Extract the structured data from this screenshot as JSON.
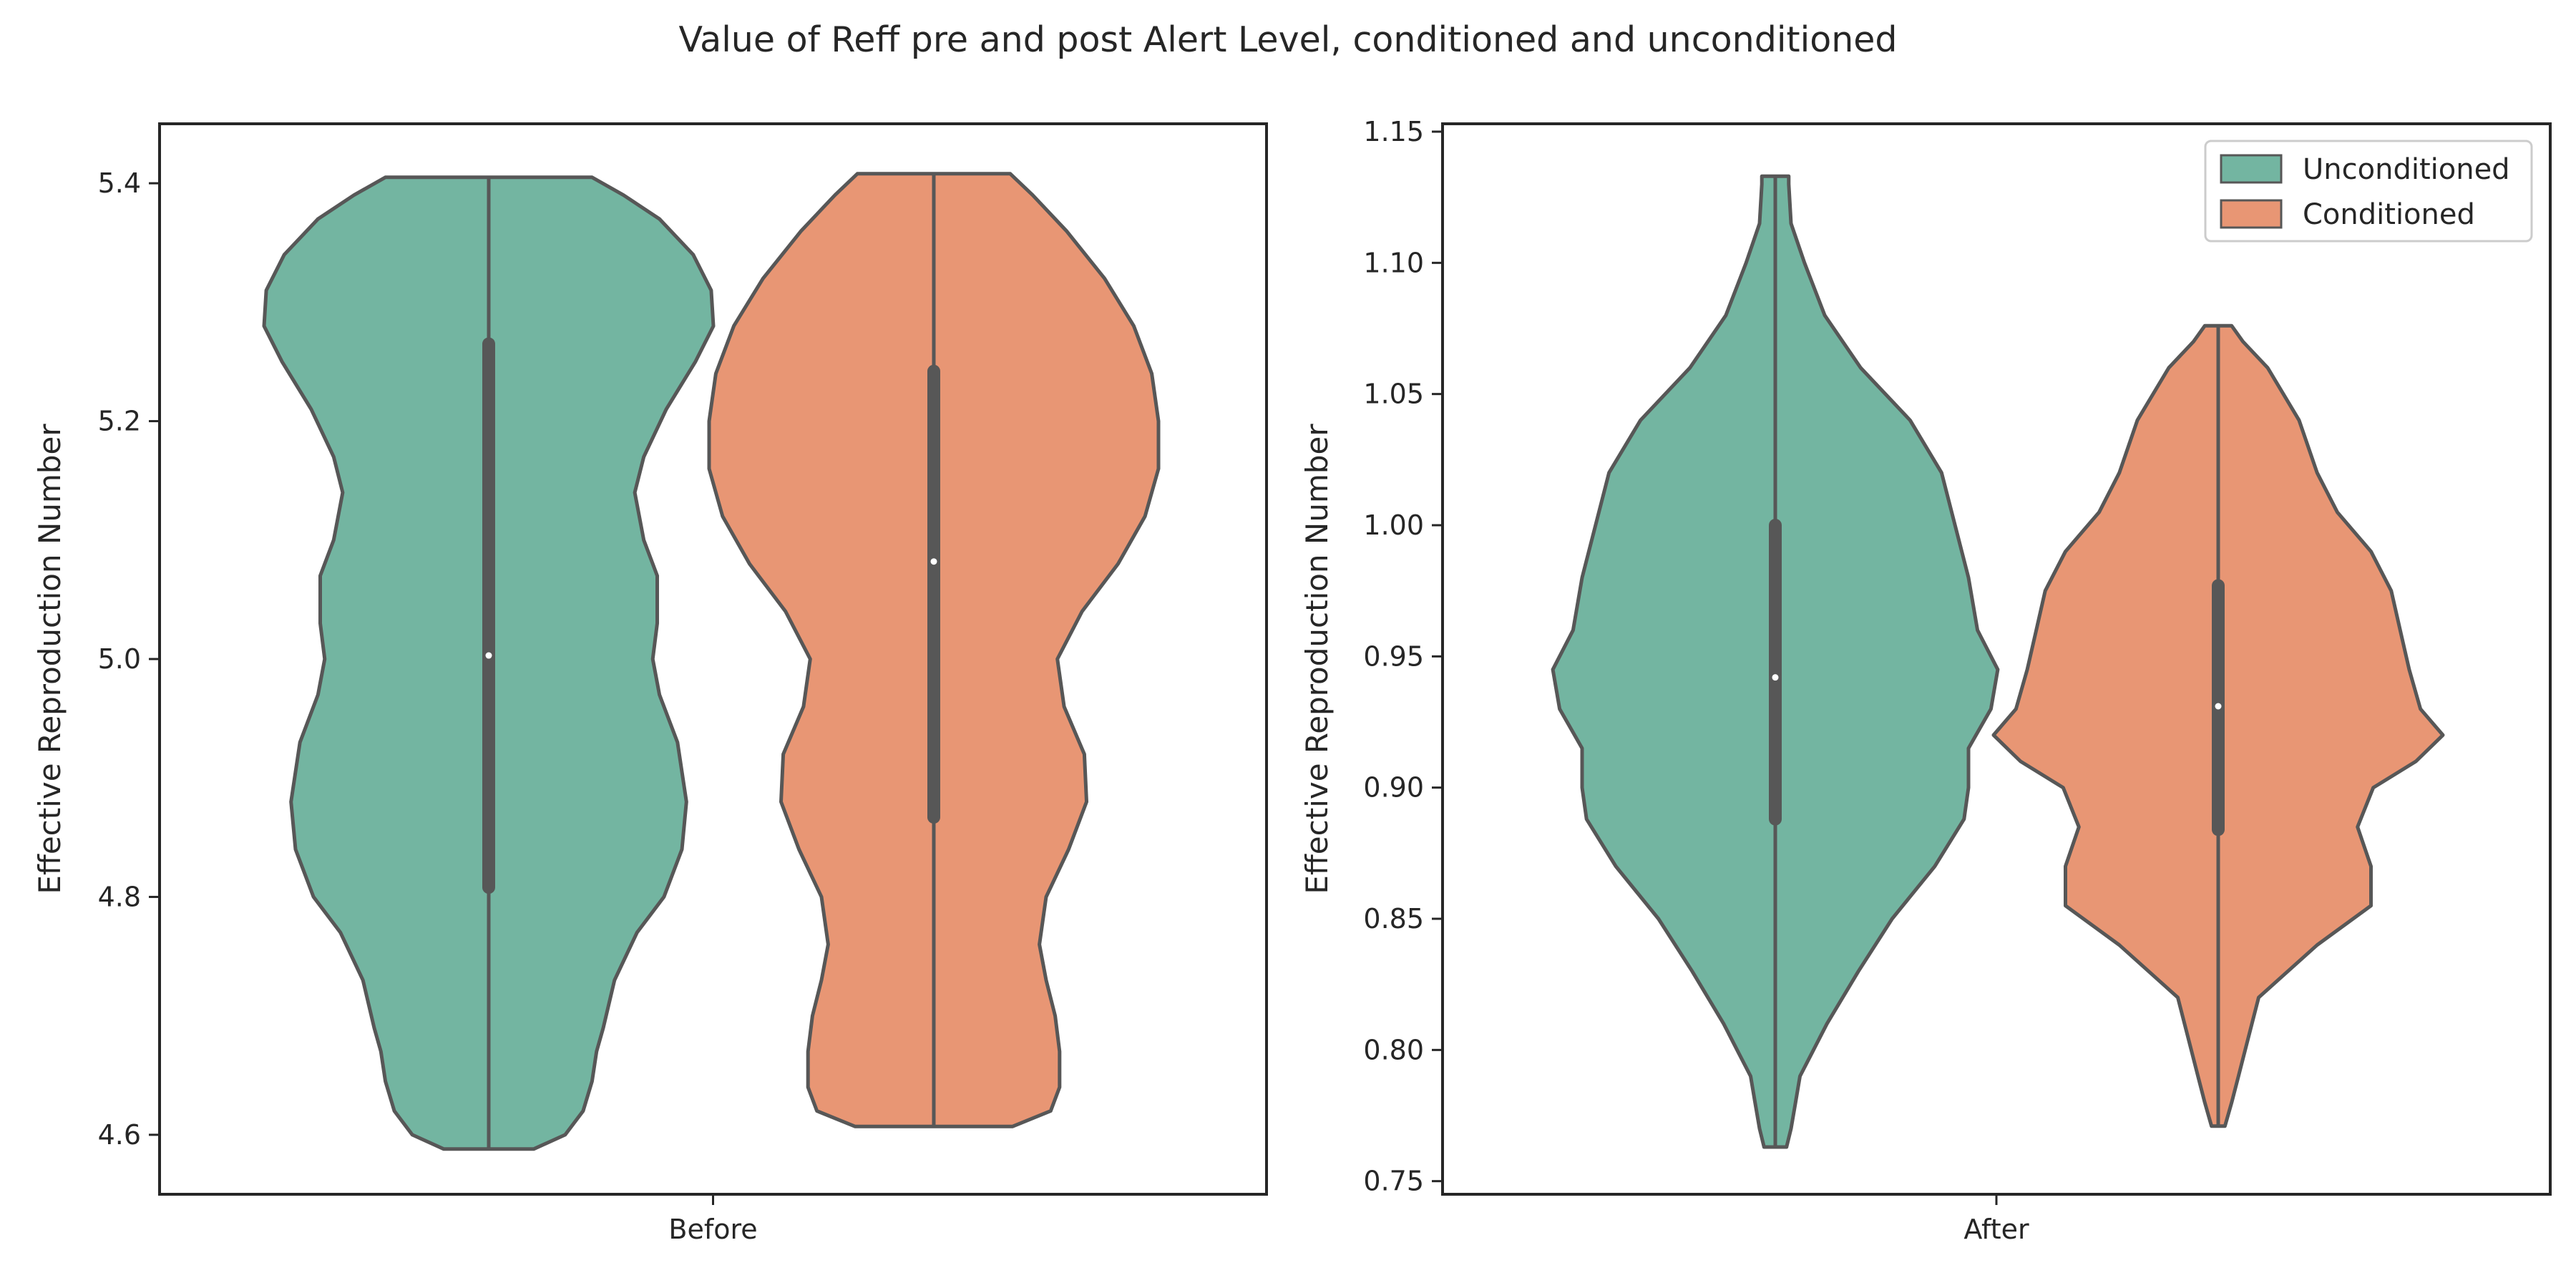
{
  "figure": {
    "title": "Value of Reff pre and post Alert Level, conditioned and unconditioned"
  },
  "colors": {
    "unconditioned": "#73b5a1",
    "conditioned": "#e89674",
    "outline": "#575757",
    "axes": "#262626",
    "background": "#ffffff"
  },
  "chart_data": [
    {
      "type": "violin",
      "panel": "left",
      "title": "",
      "xlabel": "",
      "ylabel": "Effective Reproduction Number",
      "categories": [
        "Before"
      ],
      "ylim": [
        4.55,
        5.45
      ],
      "yticks": [
        4.6,
        4.8,
        5.0,
        5.2,
        5.4
      ],
      "ytick_labels": [
        "4.6",
        "4.8",
        "5.0",
        "5.2",
        "5.4"
      ],
      "series": [
        {
          "name": "Unconditioned",
          "range": [
            4.588,
            5.405
          ],
          "median": 5.003,
          "q1": 4.808,
          "q3": 5.265,
          "density_profile": [
            [
              4.588,
              0.2
            ],
            [
              4.6,
              0.34
            ],
            [
              4.62,
              0.42
            ],
            [
              4.645,
              0.46
            ],
            [
              4.67,
              0.48
            ],
            [
              4.69,
              0.51
            ],
            [
              4.73,
              0.56
            ],
            [
              4.77,
              0.66
            ],
            [
              4.8,
              0.78
            ],
            [
              4.84,
              0.86
            ],
            [
              4.88,
              0.88
            ],
            [
              4.93,
              0.84
            ],
            [
              4.97,
              0.76
            ],
            [
              5.0,
              0.73
            ],
            [
              5.03,
              0.75
            ],
            [
              5.07,
              0.75
            ],
            [
              5.1,
              0.69
            ],
            [
              5.14,
              0.65
            ],
            [
              5.17,
              0.69
            ],
            [
              5.21,
              0.79
            ],
            [
              5.25,
              0.92
            ],
            [
              5.28,
              1.0
            ],
            [
              5.31,
              0.99
            ],
            [
              5.34,
              0.91
            ],
            [
              5.37,
              0.76
            ],
            [
              5.39,
              0.6
            ],
            [
              5.405,
              0.46
            ]
          ]
        },
        {
          "name": "Conditioned",
          "range": [
            4.607,
            5.408
          ],
          "median": 5.082,
          "q1": 4.867,
          "q3": 5.242,
          "density_profile": [
            [
              4.607,
              0.35
            ],
            [
              4.62,
              0.52
            ],
            [
              4.64,
              0.56
            ],
            [
              4.67,
              0.56
            ],
            [
              4.7,
              0.54
            ],
            [
              4.73,
              0.5
            ],
            [
              4.76,
              0.47
            ],
            [
              4.8,
              0.5
            ],
            [
              4.84,
              0.6
            ],
            [
              4.88,
              0.68
            ],
            [
              4.92,
              0.67
            ],
            [
              4.96,
              0.58
            ],
            [
              5.0,
              0.55
            ],
            [
              5.04,
              0.66
            ],
            [
              5.08,
              0.82
            ],
            [
              5.12,
              0.94
            ],
            [
              5.16,
              1.0
            ],
            [
              5.2,
              1.0
            ],
            [
              5.24,
              0.97
            ],
            [
              5.28,
              0.89
            ],
            [
              5.32,
              0.76
            ],
            [
              5.36,
              0.59
            ],
            [
              5.39,
              0.44
            ],
            [
              5.408,
              0.34
            ]
          ]
        }
      ]
    },
    {
      "type": "violin",
      "panel": "right",
      "title": "",
      "xlabel": "",
      "ylabel": "Effective Reproduction Number",
      "categories": [
        "After"
      ],
      "ylim": [
        0.745,
        1.153
      ],
      "yticks": [
        0.75,
        0.8,
        0.85,
        0.9,
        0.95,
        1.0,
        1.05,
        1.1,
        1.15
      ],
      "ytick_labels": [
        "0.75",
        "0.80",
        "0.85",
        "0.90",
        "0.95",
        "1.00",
        "1.05",
        "1.10",
        "1.15"
      ],
      "legend": {
        "location": "upper right",
        "entries": [
          "Unconditioned",
          "Conditioned"
        ]
      },
      "series": [
        {
          "name": "Unconditioned",
          "range": [
            0.763,
            1.133
          ],
          "median": 0.942,
          "q1": 0.888,
          "q3": 1.0,
          "density_profile": [
            [
              0.763,
              0.05
            ],
            [
              0.77,
              0.07
            ],
            [
              0.78,
              0.09
            ],
            [
              0.79,
              0.11
            ],
            [
              0.8,
              0.17
            ],
            [
              0.81,
              0.23
            ],
            [
              0.83,
              0.37
            ],
            [
              0.85,
              0.52
            ],
            [
              0.87,
              0.71
            ],
            [
              0.888,
              0.84
            ],
            [
              0.9,
              0.86
            ],
            [
              0.915,
              0.86
            ],
            [
              0.93,
              0.96
            ],
            [
              0.945,
              0.99
            ],
            [
              0.96,
              0.9
            ],
            [
              0.98,
              0.86
            ],
            [
              1.0,
              0.8
            ],
            [
              1.02,
              0.74
            ],
            [
              1.04,
              0.6
            ],
            [
              1.06,
              0.38
            ],
            [
              1.08,
              0.22
            ],
            [
              1.1,
              0.13
            ],
            [
              1.115,
              0.07
            ],
            [
              1.13,
              0.06
            ],
            [
              1.133,
              0.06
            ]
          ]
        },
        {
          "name": "Conditioned",
          "range": [
            0.771,
            1.076
          ],
          "median": 0.931,
          "q1": 0.884,
          "q3": 0.977,
          "density_profile": [
            [
              0.771,
              0.03
            ],
            [
              0.78,
              0.06
            ],
            [
              0.79,
              0.09
            ],
            [
              0.8,
              0.12
            ],
            [
              0.82,
              0.18
            ],
            [
              0.84,
              0.44
            ],
            [
              0.855,
              0.68
            ],
            [
              0.87,
              0.68
            ],
            [
              0.885,
              0.62
            ],
            [
              0.9,
              0.69
            ],
            [
              0.91,
              0.88
            ],
            [
              0.92,
              1.0
            ],
            [
              0.93,
              0.9
            ],
            [
              0.945,
              0.85
            ],
            [
              0.96,
              0.81
            ],
            [
              0.975,
              0.77
            ],
            [
              0.99,
              0.68
            ],
            [
              1.005,
              0.53
            ],
            [
              1.02,
              0.44
            ],
            [
              1.04,
              0.36
            ],
            [
              1.06,
              0.22
            ],
            [
              1.07,
              0.11
            ],
            [
              1.076,
              0.06
            ]
          ]
        }
      ]
    }
  ]
}
